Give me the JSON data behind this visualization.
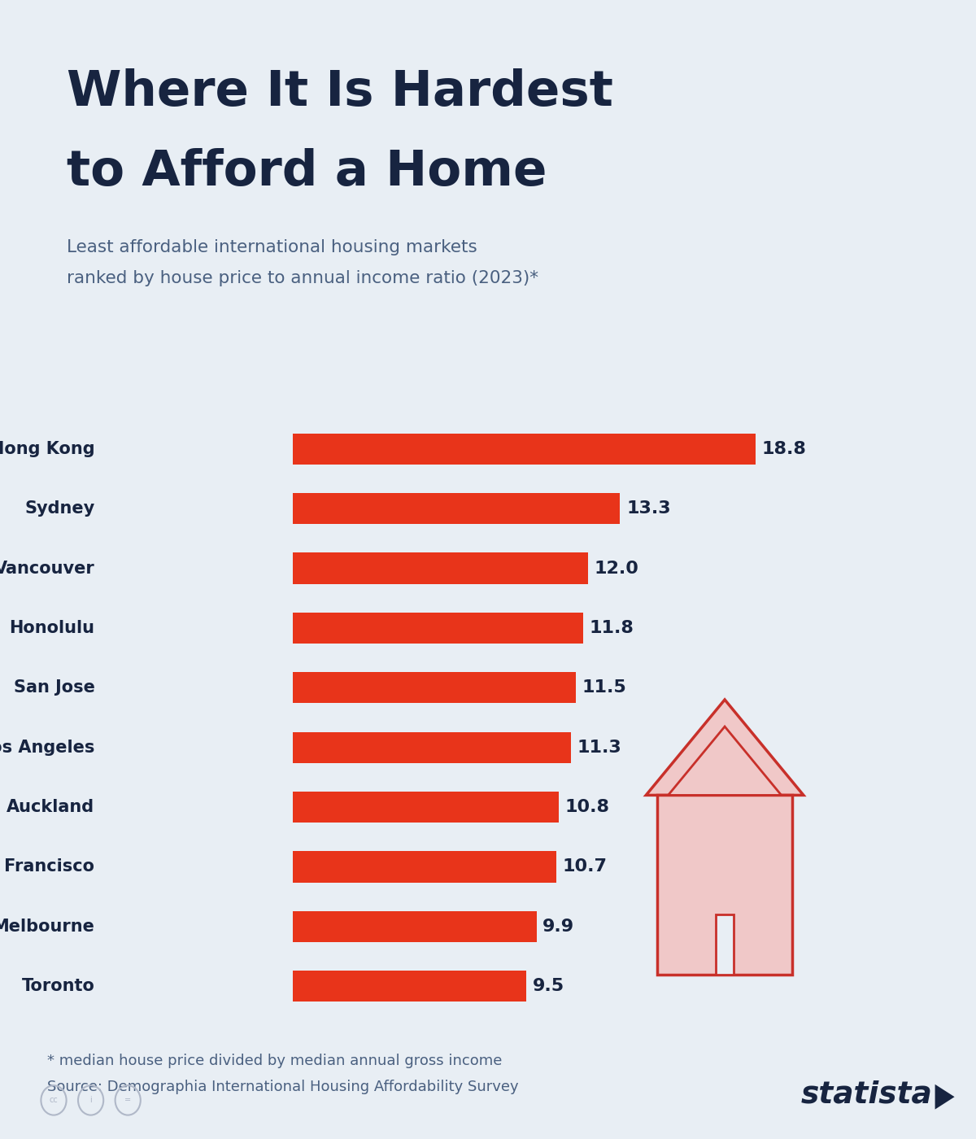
{
  "title_line1": "Where It Is Hardest",
  "title_line2": "to Afford a Home",
  "subtitle_line1": "Least affordable international housing markets",
  "subtitle_line2": "ranked by house price to annual income ratio (2023)*",
  "cities": [
    "Hong Kong",
    "Sydney",
    "Vancouver",
    "Honolulu",
    "San Jose",
    "Los Angeles",
    "Auckland",
    "San Francisco",
    "Melbourne",
    "Toronto"
  ],
  "values": [
    18.8,
    13.3,
    12.0,
    11.8,
    11.5,
    11.3,
    10.8,
    10.7,
    9.9,
    9.5
  ],
  "bar_color": "#E8341A",
  "background_color": "#E8EEF4",
  "title_color": "#172440",
  "subtitle_color": "#4a6080",
  "label_color": "#172440",
  "value_color": "#172440",
  "footnote_color": "#4a6080",
  "footnote1": "* median house price divided by median annual gross income",
  "footnote2": "Source: Demographia International Housing Affordability Survey",
  "statista_color": "#172440",
  "title_accent_color": "#E8341A",
  "house_fill_color": "#F0C8C8",
  "house_outline_color": "#C8302A"
}
